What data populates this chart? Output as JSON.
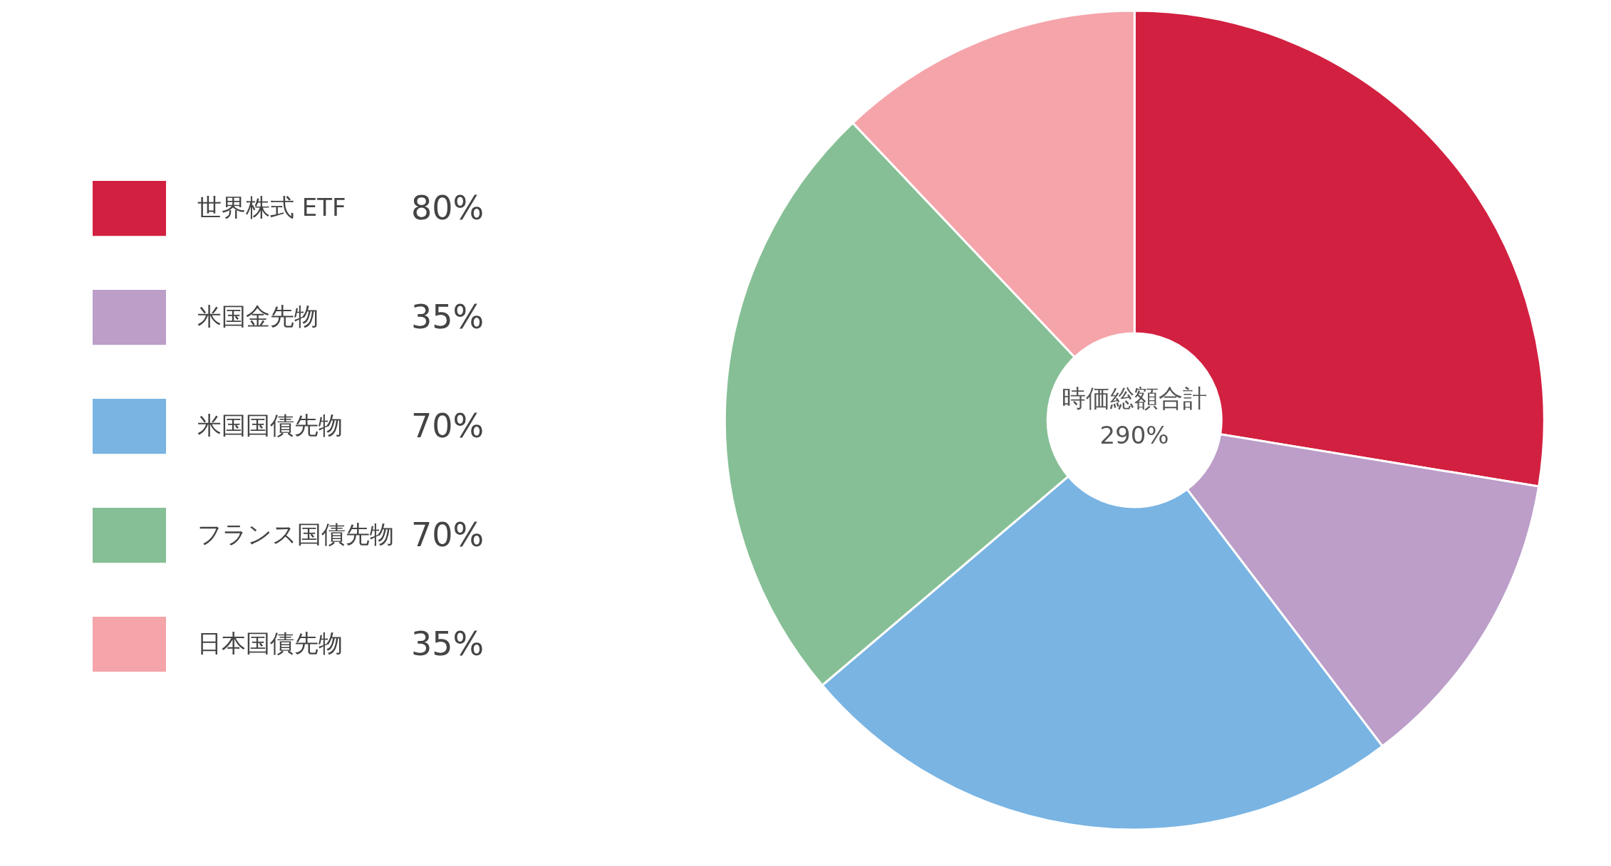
{
  "chart_data": {
    "type": "donut",
    "categories": [
      "世界株式 ETF",
      "米国金先物",
      "米国国債先物",
      "フランス国債先物",
      "日本国債先物"
    ],
    "values": [
      80,
      35,
      70,
      70,
      35
    ],
    "value_labels": [
      "80%",
      "35%",
      "70%",
      "70%",
      "35%"
    ],
    "colors": [
      "#d22040",
      "#bc9ec9",
      "#79b4e3",
      "#86bf95",
      "#f5a4aa"
    ],
    "legend": "left",
    "data_labels": true,
    "annotations": [
      "時価総額合計",
      "290%"
    ]
  }
}
